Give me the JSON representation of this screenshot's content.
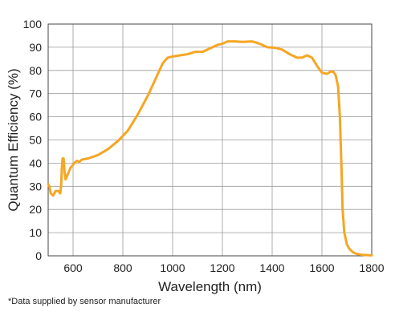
{
  "chart_data": {
    "type": "line",
    "title": "",
    "xlabel": "Wavelength (nm)",
    "ylabel": "Quantum Efficiency (%)",
    "xlim": [
      500,
      1800
    ],
    "ylim": [
      0,
      100
    ],
    "x_ticks": [
      600,
      800,
      1000,
      1200,
      1400,
      1600,
      1800
    ],
    "y_ticks": [
      0,
      10,
      20,
      30,
      40,
      50,
      60,
      70,
      80,
      90,
      100
    ],
    "grid": true,
    "legend": "none",
    "series": [
      {
        "color": "#F5A623",
        "points": [
          [
            500,
            31
          ],
          [
            505,
            30
          ],
          [
            510,
            27
          ],
          [
            520,
            26
          ],
          [
            530,
            28
          ],
          [
            540,
            28
          ],
          [
            548,
            27
          ],
          [
            552,
            30
          ],
          [
            555,
            38
          ],
          [
            558,
            42
          ],
          [
            562,
            42
          ],
          [
            566,
            36
          ],
          [
            570,
            33
          ],
          [
            578,
            35
          ],
          [
            590,
            38
          ],
          [
            605,
            40
          ],
          [
            615,
            41
          ],
          [
            625,
            40.5
          ],
          [
            635,
            41.5
          ],
          [
            660,
            42
          ],
          [
            700,
            43.5
          ],
          [
            740,
            46
          ],
          [
            780,
            49.5
          ],
          [
            820,
            54
          ],
          [
            860,
            61
          ],
          [
            900,
            69
          ],
          [
            930,
            76
          ],
          [
            960,
            83
          ],
          [
            980,
            85.5
          ],
          [
            1000,
            86
          ],
          [
            1030,
            86.5
          ],
          [
            1060,
            87
          ],
          [
            1090,
            88
          ],
          [
            1120,
            88
          ],
          [
            1150,
            89.5
          ],
          [
            1180,
            91
          ],
          [
            1200,
            91.5
          ],
          [
            1220,
            92.5
          ],
          [
            1250,
            92.5
          ],
          [
            1280,
            92.3
          ],
          [
            1320,
            92.5
          ],
          [
            1350,
            91.5
          ],
          [
            1380,
            90
          ],
          [
            1410,
            89.8
          ],
          [
            1440,
            89
          ],
          [
            1470,
            87
          ],
          [
            1500,
            85.5
          ],
          [
            1520,
            85.5
          ],
          [
            1540,
            86.5
          ],
          [
            1560,
            85.5
          ],
          [
            1580,
            82
          ],
          [
            1600,
            79
          ],
          [
            1620,
            78.5
          ],
          [
            1635,
            79.5
          ],
          [
            1645,
            79.5
          ],
          [
            1655,
            78
          ],
          [
            1665,
            73
          ],
          [
            1672,
            60
          ],
          [
            1678,
            40
          ],
          [
            1683,
            20
          ],
          [
            1690,
            10
          ],
          [
            1700,
            5
          ],
          [
            1710,
            3
          ],
          [
            1725,
            1.5
          ],
          [
            1740,
            0.8
          ],
          [
            1760,
            0.5
          ],
          [
            1780,
            0.3
          ],
          [
            1800,
            0.2
          ]
        ]
      }
    ]
  },
  "footnote": "*Data supplied by sensor manufacturer"
}
